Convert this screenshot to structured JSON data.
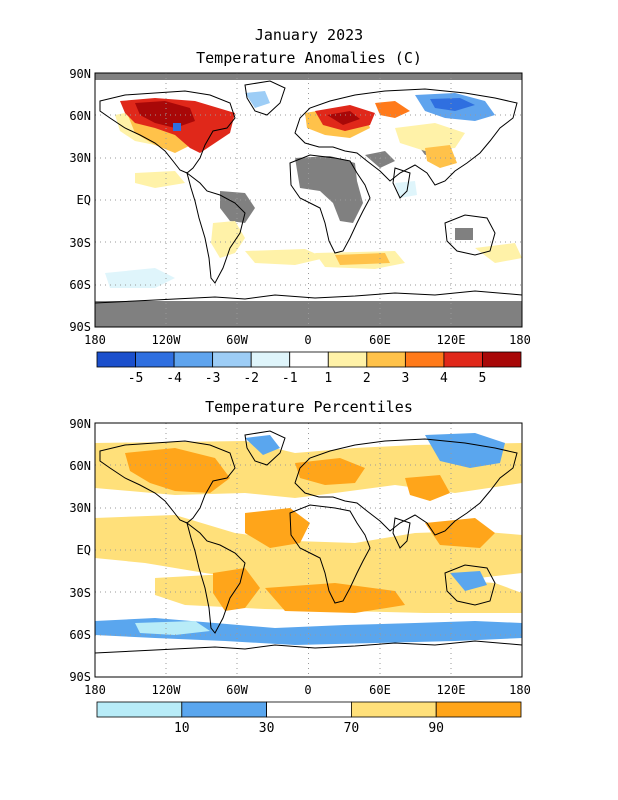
{
  "header": {
    "date_title": "January 2023",
    "anomaly_title": "Temperature Anomalies (C)",
    "percentile_title": "Temperature Percentiles"
  },
  "axes": {
    "lat_labels": [
      "90N",
      "60N",
      "30N",
      "EQ",
      "30S",
      "60S",
      "90S"
    ],
    "lon_labels": [
      "180",
      "120W",
      "60W",
      "0",
      "60E",
      "120E",
      "180"
    ]
  },
  "anomaly_legend": {
    "labels": [
      "-5",
      "-4",
      "-3",
      "-2",
      "-1",
      "1",
      "2",
      "3",
      "4",
      "5"
    ],
    "colors": [
      "#1b4fcc",
      "#2f6fe0",
      "#5fa4ee",
      "#9dcdf6",
      "#dff5fb",
      "#ffffff",
      "#fff2a8",
      "#ffc24a",
      "#ff7a1a",
      "#e0281a",
      "#a80808"
    ]
  },
  "percentile_legend": {
    "labels": [
      "10",
      "30",
      "70",
      "90"
    ],
    "colors": [
      "#b8ecf8",
      "#5aa6ee",
      "#ffffff",
      "#ffe07a",
      "#ffa51a"
    ]
  },
  "colors": {
    "missing": "#808080",
    "land_outline": "#000000"
  }
}
